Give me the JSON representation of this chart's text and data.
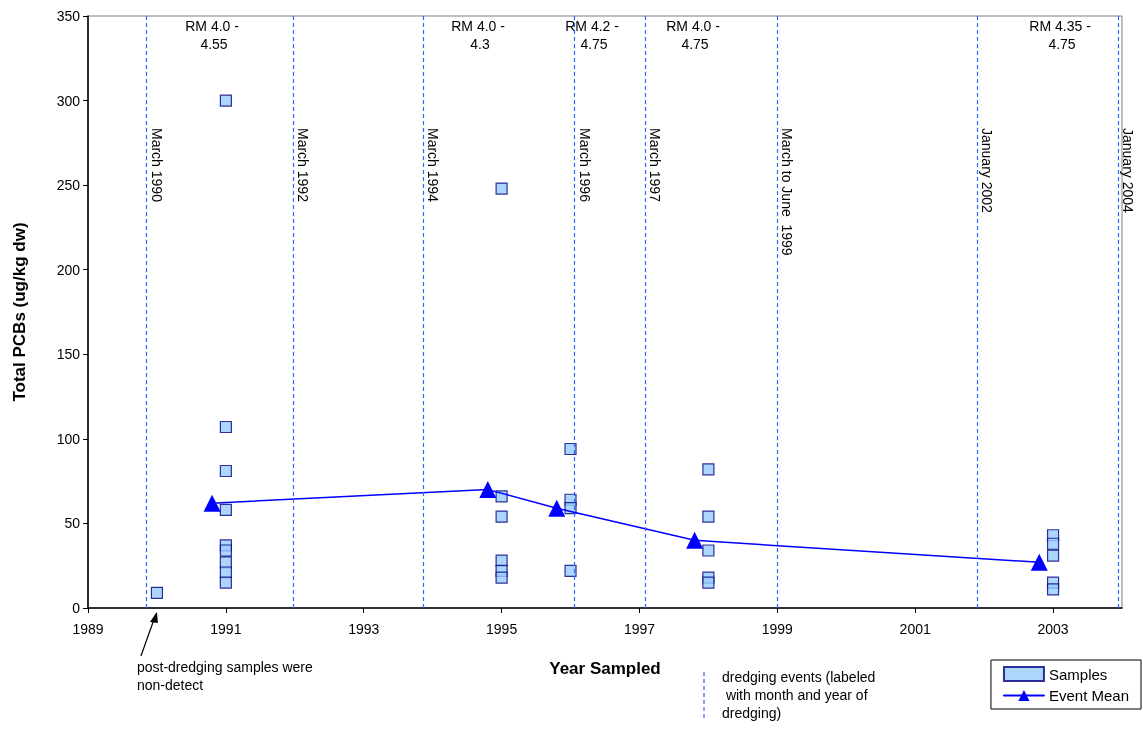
{
  "chart_data": {
    "type": "scatter",
    "xlabel": "Year Sampled",
    "ylabel": "Total PCBs (ug/kg dw)",
    "xlim": [
      1989,
      2004
    ],
    "xticks": [
      1989,
      1991,
      1993,
      1995,
      1997,
      1999,
      2001,
      2003
    ],
    "ylim": [
      0,
      350
    ],
    "yticks": [
      0,
      50,
      100,
      150,
      200,
      250,
      300,
      350
    ],
    "grid": false,
    "legend": "bottom right",
    "series": [
      {
        "name": "Samples",
        "marker": "square",
        "color": "#99ccff",
        "x": [
          1990,
          1991,
          1991,
          1991,
          1991,
          1991,
          1991,
          1991,
          1991,
          1991,
          1995,
          1995,
          1995,
          1995,
          1995,
          1995,
          1996,
          1996,
          1996,
          1996,
          1998,
          1998,
          1998,
          1998,
          1998,
          2003,
          2003,
          2003,
          2003,
          2003
        ],
        "values": [
          9,
          300,
          107,
          81,
          58,
          37,
          34,
          27,
          21,
          15,
          248,
          66,
          54,
          28,
          22,
          18,
          94,
          64,
          59,
          22,
          82,
          54,
          34,
          18,
          15,
          43,
          38,
          31,
          15,
          11
        ]
      },
      {
        "name": "Event Mean",
        "type": "line",
        "marker": "triangle",
        "line_style": "solid",
        "color": "#0000ff",
        "x": [
          1990.8,
          1994.8,
          1995.8,
          1997.8,
          2002.8
        ],
        "values": [
          62,
          70,
          59,
          40,
          27
        ]
      }
    ],
    "ref_lines": [
      {
        "axis": "x",
        "value": 1989.85,
        "label": "March 1990",
        "color": "#3366ff",
        "line_style": "dashed"
      },
      {
        "axis": "x",
        "value": 1991.98,
        "label": "March 1992",
        "color": "#3366ff",
        "line_style": "dashed"
      },
      {
        "axis": "x",
        "value": 1993.86,
        "label": "March 1994",
        "color": "#3366ff",
        "line_style": "dashed"
      },
      {
        "axis": "x",
        "value": 1996.06,
        "label": "March 1996",
        "color": "#3366ff",
        "line_style": "dashed"
      },
      {
        "axis": "x",
        "value": 1997.08,
        "label": "March 1997",
        "color": "#3366ff",
        "line_style": "dashed"
      },
      {
        "axis": "x",
        "value": 1999.0,
        "label": "March to June  1999",
        "color": "#3366ff",
        "line_style": "dashed"
      },
      {
        "axis": "x",
        "value": 2001.9,
        "label": "January 2002",
        "color": "#3366ff",
        "line_style": "dashed"
      },
      {
        "axis": "x",
        "value": 2003.94,
        "label": "January 2004",
        "color": "#3366ff",
        "line_style": "dashed"
      }
    ],
    "annotations": [
      "RM 4.0 - 4.55",
      "RM 4.0 - 4.3",
      "RM 4.2 - 4.75",
      "RM 4.0 - 4.75",
      "RM 4.35 - 4.75",
      "post-dredging samples were non-detect",
      "dredging events (labeled with month and year of dredging)"
    ]
  }
}
